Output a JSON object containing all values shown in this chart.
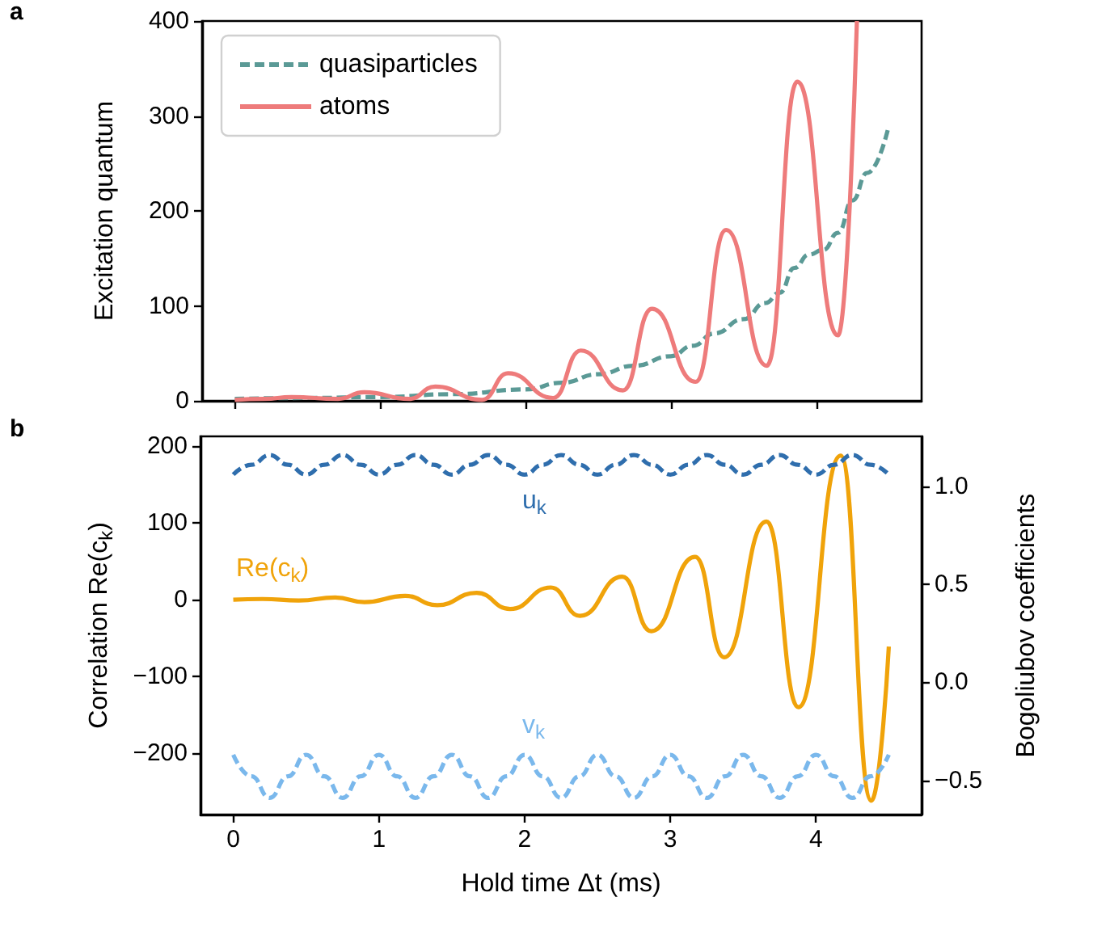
{
  "chart_data": [
    {
      "type": "line",
      "ylabel": "Excitation quantum",
      "annotations": [
        "a"
      ],
      "xlim": [
        -0.225,
        4.725
      ],
      "xticks": [
        0,
        1,
        2,
        3,
        4
      ],
      "ylim": [
        0,
        400
      ],
      "yticks": [
        0,
        100,
        200,
        300,
        400
      ],
      "tick_labels": "y",
      "legend": "top left",
      "series": [
        {
          "name": "quasiparticles",
          "color": "#5b9a96",
          "line_style": "dashed",
          "x": [
            0,
            0.5,
            1,
            1.5,
            2,
            2.25,
            2.5,
            2.75,
            3,
            3.15,
            3.3,
            3.5,
            3.65,
            3.75,
            3.85,
            3.95,
            4.05,
            4.15,
            4.25,
            4.35,
            4.5
          ],
          "values": [
            2,
            3,
            4,
            7,
            12,
            19,
            28,
            37,
            47,
            58,
            71,
            86,
            103,
            114,
            140,
            154,
            159,
            177,
            211,
            240,
            290
          ]
        },
        {
          "name": "atoms",
          "color": "#ee7b7b",
          "line_style": "solid",
          "x": [
            0,
            0.2,
            0.39,
            0.71,
            0.89,
            1.2,
            1.38,
            1.7,
            1.88,
            2.19,
            2.38,
            2.67,
            2.87,
            3.17,
            3.38,
            3.66,
            3.87,
            4.15,
            4.28
          ],
          "values": [
            1,
            2,
            4,
            2,
            9,
            2,
            15,
            1,
            29,
            3,
            53,
            11,
            97,
            20,
            180,
            37,
            336,
            69,
            400
          ]
        }
      ]
    },
    {
      "type": "line",
      "xlabel": "Hold time Δt (ms)",
      "ylabel": "Correlation Re(c$_{k}$)",
      "y2label": "Bogoliubov coefficients",
      "annotations": [
        "b"
      ],
      "xlim": [
        -0.225,
        4.725
      ],
      "xticks": [
        0,
        1,
        2,
        3,
        4
      ],
      "ylim": [
        -280,
        213
      ],
      "yticks": [
        {
          "value": -200,
          "label": "−200"
        },
        {
          "value": -100,
          "label": "−100"
        },
        0,
        100,
        200
      ],
      "y2lim": [
        -0.675,
        1.255
      ],
      "y2ticks": [
        {
          "value": -0.5,
          "label": "−0.5"
        },
        {
          "value": 0,
          "label": "0.0"
        },
        {
          "value": 0.5,
          "label": "0.5"
        },
        {
          "value": 1,
          "label": "1.0"
        }
      ],
      "series": [
        {
          "name": "Re(c$_{k}$)",
          "color": "#f0a30a",
          "line_style": "solid",
          "x": [
            0,
            0.2,
            0.45,
            0.7,
            0.9,
            1.18,
            1.4,
            1.67,
            1.9,
            2.18,
            2.38,
            2.67,
            2.87,
            3.17,
            3.37,
            3.66,
            3.88,
            4.17,
            4.38,
            4.5
          ],
          "values": [
            0,
            1,
            -1,
            3,
            -3,
            5,
            -7,
            9,
            -12,
            16,
            -21,
            30,
            -41,
            56,
            -75,
            102,
            -140,
            188,
            -262,
            -61
          ]
        },
        {
          "name": "u$_{k}$",
          "color": "#2f6ead",
          "line_style": "dashed",
          "axis": "y2",
          "x": [
            0,
            0.125,
            0.25,
            0.375,
            0.5,
            0.625,
            0.75,
            0.875,
            1,
            1.125,
            1.25,
            1.375,
            1.5,
            1.625,
            1.75,
            1.875,
            2,
            2.125,
            2.25,
            2.375,
            2.5,
            2.625,
            2.75,
            2.875,
            3,
            3.125,
            3.25,
            3.375,
            3.5,
            3.625,
            3.75,
            3.875,
            4,
            4.125,
            4.25,
            4.375,
            4.5
          ],
          "values": [
            1.06,
            1.11,
            1.16,
            1.11,
            1.06,
            1.11,
            1.16,
            1.11,
            1.06,
            1.11,
            1.16,
            1.11,
            1.06,
            1.11,
            1.16,
            1.11,
            1.06,
            1.11,
            1.16,
            1.11,
            1.06,
            1.11,
            1.16,
            1.11,
            1.06,
            1.11,
            1.16,
            1.11,
            1.06,
            1.11,
            1.16,
            1.11,
            1.06,
            1.11,
            1.16,
            1.11,
            1.06
          ]
        },
        {
          "name": "v$_{k}$",
          "color": "#7ab8ec",
          "line_style": "dashed",
          "axis": "y2",
          "x": [
            0,
            0.125,
            0.25,
            0.375,
            0.5,
            0.625,
            0.75,
            0.875,
            1,
            1.125,
            1.25,
            1.375,
            1.5,
            1.625,
            1.75,
            1.875,
            2,
            2.125,
            2.25,
            2.375,
            2.5,
            2.625,
            2.75,
            2.875,
            3,
            3.125,
            3.25,
            3.375,
            3.5,
            3.625,
            3.75,
            3.875,
            4,
            4.125,
            4.25,
            4.375,
            4.5
          ],
          "values": [
            -0.37,
            -0.48,
            -0.59,
            -0.48,
            -0.37,
            -0.48,
            -0.59,
            -0.48,
            -0.37,
            -0.48,
            -0.59,
            -0.48,
            -0.37,
            -0.48,
            -0.59,
            -0.48,
            -0.37,
            -0.48,
            -0.59,
            -0.48,
            -0.37,
            -0.48,
            -0.59,
            -0.48,
            -0.37,
            -0.48,
            -0.59,
            -0.48,
            -0.37,
            -0.48,
            -0.59,
            -0.48,
            -0.37,
            -0.48,
            -0.59,
            -0.48,
            -0.37
          ]
        }
      ]
    }
  ]
}
